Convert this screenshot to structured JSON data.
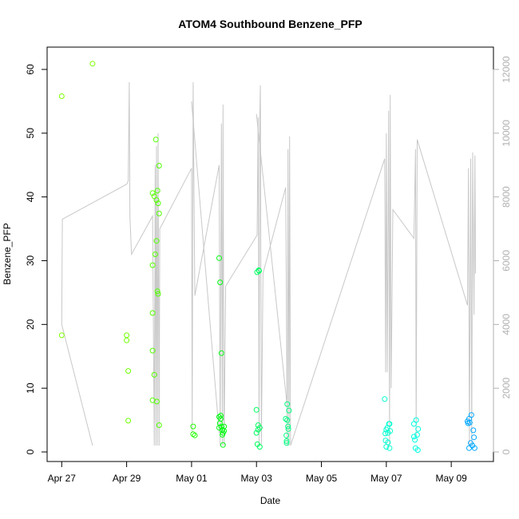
{
  "chart_data": {
    "type": "scatter",
    "title": "ATOM4 Southbound Benzene_PFP",
    "xlabel": "Date",
    "ylabel": "Benzene_PFP",
    "x_tick_labels": [
      "Apr 27",
      "Apr 29",
      "May 01",
      "May 03",
      "May 05",
      "May 07",
      "May 09"
    ],
    "x_ticks_days": [
      0,
      2,
      4,
      6,
      8,
      10,
      12
    ],
    "xlim_days": [
      -0.45,
      13.3
    ],
    "ylim": [
      -1.5,
      63.5
    ],
    "y_ticks": [
      0,
      10,
      20,
      30,
      40,
      50,
      60
    ],
    "y2lim": [
      -300,
      12700
    ],
    "y2_ticks": [
      0,
      2000,
      4000,
      6000,
      8000,
      10000,
      12000
    ],
    "secondary_line_color": "#c8c8c8",
    "secondary_axis_color": "#b0b0b0",
    "series": [
      {
        "values": [
          [
            0.0,
            55.8,
            "#80ff00"
          ],
          [
            0.0,
            18.3,
            "#80ff00"
          ],
          [
            0.95,
            60.9,
            "#80ff00"
          ],
          [
            2.0,
            18.3,
            "#70ff00"
          ],
          [
            2.0,
            17.5,
            "#70ff00"
          ],
          [
            2.05,
            12.7,
            "#70ff00"
          ],
          [
            2.05,
            4.9,
            "#70ff00"
          ],
          [
            2.8,
            40.6,
            "#55ff00"
          ],
          [
            2.8,
            29.3,
            "#55ff00"
          ],
          [
            2.8,
            21.8,
            "#55ff00"
          ],
          [
            2.8,
            15.9,
            "#55ff00"
          ],
          [
            2.8,
            8.1,
            "#55ff00"
          ],
          [
            2.85,
            40.1,
            "#55ff00"
          ],
          [
            2.85,
            12.1,
            "#55ff00"
          ],
          [
            2.88,
            31.0,
            "#55ff00"
          ],
          [
            2.9,
            49.0,
            "#50ff00"
          ],
          [
            2.92,
            39.5,
            "#50ff00"
          ],
          [
            2.92,
            33.1,
            "#50ff00"
          ],
          [
            2.93,
            7.9,
            "#50ff00"
          ],
          [
            2.95,
            41.0,
            "#50ff00"
          ],
          [
            2.95,
            25.2,
            "#50ff00"
          ],
          [
            2.97,
            39.0,
            "#50ff00"
          ],
          [
            2.97,
            24.8,
            "#50ff00"
          ],
          [
            3.0,
            44.9,
            "#50ff00"
          ],
          [
            3.0,
            37.4,
            "#50ff00"
          ],
          [
            3.0,
            4.2,
            "#50ff00"
          ],
          [
            4.05,
            4.0,
            "#20ff00"
          ],
          [
            4.05,
            2.8,
            "#20ff00"
          ],
          [
            4.1,
            2.6,
            "#20ff00"
          ],
          [
            4.85,
            30.4,
            "#00ff10"
          ],
          [
            4.85,
            5.5,
            "#00ff10"
          ],
          [
            4.87,
            4.5,
            "#00ff10"
          ],
          [
            4.88,
            26.6,
            "#00ff10"
          ],
          [
            4.9,
            5.7,
            "#00ff10"
          ],
          [
            4.9,
            5.2,
            "#00ff10"
          ],
          [
            4.92,
            15.5,
            "#00ff10"
          ],
          [
            4.92,
            4.0,
            "#00ff10"
          ],
          [
            4.95,
            3.5,
            "#00ff10"
          ],
          [
            4.95,
            2.7,
            "#00ff10"
          ],
          [
            4.97,
            3.0,
            "#00ff10"
          ],
          [
            4.97,
            1.1,
            "#00ff10"
          ],
          [
            5.0,
            4.0,
            "#00ff10"
          ],
          [
            5.0,
            3.3,
            "#00ff10"
          ],
          [
            4.85,
            3.8,
            "#00ff10"
          ],
          [
            6.0,
            6.6,
            "#00ff60"
          ],
          [
            6.0,
            3.0,
            "#00ff60"
          ],
          [
            6.02,
            28.2,
            "#00ff60"
          ],
          [
            6.03,
            1.2,
            "#00ff60"
          ],
          [
            6.05,
            4.2,
            "#00ff60"
          ],
          [
            6.05,
            3.5,
            "#00ff60"
          ],
          [
            6.07,
            28.5,
            "#00ff60"
          ],
          [
            6.1,
            3.8,
            "#00ff60"
          ],
          [
            6.1,
            0.8,
            "#00ff60"
          ],
          [
            6.08,
            28.4,
            "#00ff60"
          ],
          [
            6.9,
            5.2,
            "#00ff80"
          ],
          [
            6.92,
            2.6,
            "#00ff80"
          ],
          [
            6.93,
            1.7,
            "#00ff80"
          ],
          [
            6.93,
            1.4,
            "#00ff80"
          ],
          [
            6.95,
            7.5,
            "#00ff80"
          ],
          [
            6.95,
            5.0,
            "#00ff80"
          ],
          [
            6.97,
            4.0,
            "#00ff80"
          ],
          [
            6.98,
            3.6,
            "#00ff80"
          ],
          [
            7.0,
            6.5,
            "#00ff80"
          ],
          [
            9.95,
            8.3,
            "#00ffd0"
          ],
          [
            9.97,
            2.9,
            "#00ffd0"
          ],
          [
            9.98,
            1.8,
            "#00ffd0"
          ],
          [
            10.0,
            0.8,
            "#00ffd0"
          ],
          [
            10.0,
            3.5,
            "#00ffd0"
          ],
          [
            10.03,
            3.8,
            "#00ffd0"
          ],
          [
            10.05,
            1.5,
            "#00ffd0"
          ],
          [
            10.05,
            3.0,
            "#00ffd0"
          ],
          [
            10.08,
            4.4,
            "#00ffd0"
          ],
          [
            10.1,
            4.4,
            "#00ffd0"
          ],
          [
            10.1,
            0.6,
            "#00ffd0"
          ],
          [
            10.12,
            3.3,
            "#00ffd0"
          ],
          [
            10.85,
            4.4,
            "#00ffe0"
          ],
          [
            10.85,
            2.4,
            "#00ffe0"
          ],
          [
            10.88,
            1.9,
            "#00ffe0"
          ],
          [
            10.9,
            0.6,
            "#00ffe0"
          ],
          [
            10.92,
            5.0,
            "#00ffe0"
          ],
          [
            10.95,
            2.7,
            "#00ffe0"
          ],
          [
            10.97,
            0.3,
            "#00ffe0"
          ],
          [
            10.98,
            3.6,
            "#00ffe0"
          ],
          [
            12.5,
            4.8,
            "#00a8ff"
          ],
          [
            12.52,
            4.5,
            "#00a8ff"
          ],
          [
            12.55,
            5.2,
            "#00a8ff"
          ],
          [
            12.55,
            0.6,
            "#00a8ff"
          ],
          [
            12.57,
            4.6,
            "#00a8ff"
          ],
          [
            12.6,
            1.4,
            "#00a8ff"
          ],
          [
            12.62,
            5.8,
            "#00a8ff"
          ],
          [
            12.65,
            1.0,
            "#00a8ff"
          ],
          [
            12.68,
            3.4,
            "#00a8ff"
          ],
          [
            12.7,
            2.3,
            "#00a8ff"
          ],
          [
            12.72,
            0.6,
            "#00a8ff"
          ]
        ]
      },
      {
        "axis": "right",
        "values": [
          [
            0.0,
            4000
          ],
          [
            0.02,
            7300
          ],
          [
            2.0,
            8400
          ],
          [
            2.05,
            8500
          ],
          [
            2.08,
            11600
          ],
          [
            2.1,
            7400
          ],
          [
            2.15,
            6200
          ],
          [
            2.8,
            7400
          ],
          [
            2.85,
            200
          ],
          [
            2.88,
            9000
          ],
          [
            2.9,
            200
          ],
          [
            2.92,
            9600
          ],
          [
            2.95,
            200
          ],
          [
            2.97,
            10000
          ],
          [
            3.0,
            200
          ],
          [
            3.02,
            7000
          ],
          [
            4.0,
            8900
          ],
          [
            4.02,
            600
          ],
          [
            4.05,
            11600
          ],
          [
            4.1,
            4900
          ],
          [
            4.85,
            9000
          ],
          [
            4.88,
            200
          ],
          [
            4.92,
            10300
          ],
          [
            4.95,
            200
          ],
          [
            4.97,
            10900
          ],
          [
            5.0,
            200
          ],
          [
            5.05,
            5200
          ],
          [
            6.02,
            6800
          ],
          [
            6.05,
            10500
          ],
          [
            6.08,
            200
          ],
          [
            6.1,
            10400
          ],
          [
            6.12,
            11500
          ],
          [
            6.15,
            200
          ],
          [
            6.2,
            5600
          ],
          [
            6.9,
            8300
          ],
          [
            6.95,
            200
          ],
          [
            6.97,
            9500
          ],
          [
            7.0,
            200
          ],
          [
            7.02,
            9900
          ],
          [
            7.05,
            200
          ],
          [
            9.95,
            9200
          ],
          [
            9.98,
            2500
          ],
          [
            10.0,
            10000
          ],
          [
            10.03,
            2500
          ],
          [
            10.07,
            10700
          ],
          [
            10.1,
            200
          ],
          [
            10.12,
            11200
          ],
          [
            10.15,
            2000
          ],
          [
            10.2,
            7600
          ],
          [
            10.85,
            6700
          ],
          [
            10.9,
            9500
          ],
          [
            10.92,
            500
          ],
          [
            10.95,
            9800
          ],
          [
            12.5,
            4600
          ],
          [
            12.53,
            8900
          ],
          [
            12.56,
            200
          ],
          [
            12.6,
            9200
          ],
          [
            12.63,
            200
          ],
          [
            12.66,
            9400
          ],
          [
            12.7,
            4300
          ],
          [
            12.73,
            9300
          ],
          [
            12.75,
            5600
          ]
        ]
      },
      {
        "axis": "right",
        "values": [
          [
            0.0,
            4000
          ],
          [
            0.95,
            200
          ]
        ]
      },
      {
        "axis": "right",
        "values": [
          [
            4.0,
            11000
          ],
          [
            4.85,
            600
          ]
        ]
      },
      {
        "axis": "right",
        "values": [
          [
            6.0,
            10600
          ],
          [
            6.95,
            1400
          ]
        ]
      }
    ]
  }
}
